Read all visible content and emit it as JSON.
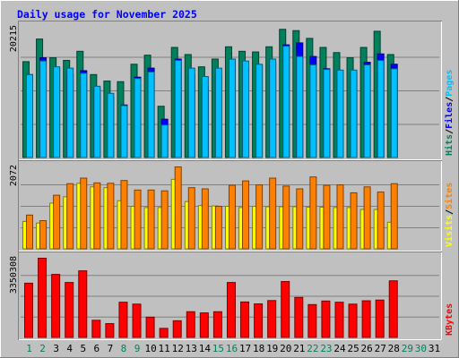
{
  "chart_data": {
    "type": "bar",
    "title": "Daily usage for November 2025",
    "days": [
      "1",
      "2",
      "3",
      "4",
      "5",
      "6",
      "7",
      "8",
      "9",
      "10",
      "11",
      "12",
      "13",
      "14",
      "15",
      "16",
      "17",
      "18",
      "19",
      "20",
      "21",
      "22",
      "23",
      "24",
      "25",
      "26",
      "27",
      "28",
      "29",
      "30",
      "31"
    ],
    "weekend_days": [
      1,
      2,
      8,
      9,
      15,
      16,
      22,
      23,
      29,
      30
    ],
    "colors": {
      "background": "#c0c0c0",
      "panel": "#c0c0c0",
      "title": "#0000ff",
      "hits": "#00805c",
      "files": "#0000ff",
      "pages": "#00c0ff",
      "visits": "#ffff00",
      "sites": "#ff8000",
      "kbytes": "#ff0000",
      "weekday_label": "#000000",
      "weekend_label": "#00805c"
    },
    "panels": [
      {
        "id": "hits-panel",
        "max_label": "20215",
        "ymax": 20215,
        "legend": [
          {
            "text": "Hits",
            "color": "#00805c"
          },
          {
            "text": "/",
            "color": "#000000"
          },
          {
            "text": "Files",
            "color": "#0000ff"
          },
          {
            "text": "/",
            "color": "#000000"
          },
          {
            "text": "Pages",
            "color": "#00c0ff"
          }
        ],
        "series": [
          {
            "name": "Hits",
            "color": "#00805c",
            "values": [
              14900,
              18400,
              15500,
              15100,
              16500,
              12900,
              11900,
              11800,
              14500,
              15900,
              8000,
              17100,
              16000,
              14100,
              15300,
              17200,
              16500,
              16400,
              17200,
              19900,
              19700,
              18500,
              17100,
              16300,
              15500,
              17100,
              19600,
              16000
            ]
          },
          {
            "name": "Files",
            "color": "#0000ff",
            "values": [
              12900,
              15500,
              13900,
              13000,
              13500,
              10700,
              9400,
              8200,
              12500,
              13900,
              6000,
              15300,
              12900,
              11100,
              12800,
              14700,
              14400,
              14300,
              14800,
              17500,
              17800,
              15700,
              13800,
              12900,
              13200,
              14800,
              16100,
              14500
            ]
          },
          {
            "name": "Pages",
            "color": "#00c0ff",
            "values": [
              12900,
              15000,
              14100,
              13900,
              13100,
              11100,
              10000,
              8100,
              12300,
              13300,
              5100,
              15100,
              13900,
              12600,
              13900,
              15300,
              15000,
              14500,
              15300,
              17300,
              15700,
              14400,
              13700,
              13600,
              13600,
              14400,
              15100,
              13800
            ]
          }
        ]
      },
      {
        "id": "visits-panel",
        "max_label": "2072",
        "ymax": 2072,
        "legend": [
          {
            "text": "Visits",
            "color": "#ffff00"
          },
          {
            "text": "/",
            "color": "#000000"
          },
          {
            "text": "Sites",
            "color": "#ff8000"
          }
        ],
        "series": [
          {
            "name": "Visits",
            "color": "#ffff00",
            "values": [
              700,
              660,
              1160,
              1320,
              1660,
              1570,
              1550,
              1220,
              1080,
              1050,
              1050,
              1760,
              1200,
              1100,
              1090,
              1080,
              1050,
              1080,
              1070,
              1070,
              1070,
              1060,
              1060,
              1050,
              1050,
              1000,
              1000,
              680
            ]
          },
          {
            "name": "Sites",
            "color": "#ff8000",
            "values": [
              860,
              720,
              1360,
              1650,
              1790,
              1670,
              1660,
              1730,
              1490,
              1490,
              1470,
              2072,
              1550,
              1520,
              1080,
              1610,
              1720,
              1620,
              1790,
              1590,
              1520,
              1820,
              1610,
              1620,
              1420,
              1570,
              1440,
              1650
            ]
          }
        ]
      },
      {
        "id": "kbytes-panel",
        "max_label": "3350308",
        "ymax": 3350308,
        "legend": [
          {
            "text": "KBytes",
            "color": "#ff0000"
          }
        ],
        "series": [
          {
            "name": "KBytes",
            "color": "#ff0000",
            "values": [
              2300000,
              3350308,
              2670000,
              2330000,
              2820000,
              740000,
              600000,
              1500000,
              1420000,
              870000,
              400000,
              720000,
              1100000,
              1050000,
              1100000,
              2330000,
              1510000,
              1430000,
              1570000,
              2370000,
              1700000,
              1400000,
              1550000,
              1500000,
              1420000,
              1560000,
              1590000,
              2400000
            ]
          }
        ]
      }
    ]
  }
}
